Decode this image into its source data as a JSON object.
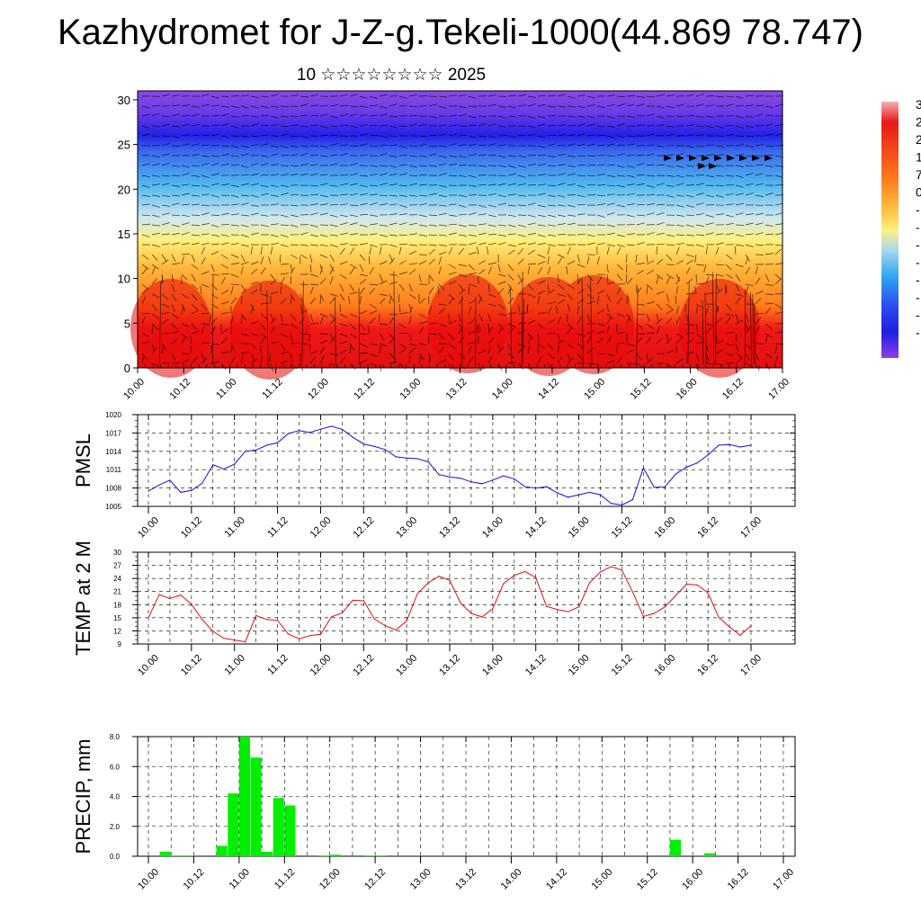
{
  "page": {
    "title": "Kazhydromet for J-Z-g.Tekeli-1000(44.869 78.747)",
    "subtitle": "10 ☆☆☆☆☆☆☆☆ 2025"
  },
  "chart_data": [
    {
      "type": "heatmap",
      "name": "vertical cross-section (temperature shading with wind barbs)",
      "x_tick_labels": [
        "10.00",
        "10.12",
        "11.00",
        "11.12",
        "12.00",
        "12.12",
        "13.00",
        "13.12",
        "14.00",
        "14.12",
        "15.00",
        "15.12",
        "16.00",
        "16.12",
        "17.00"
      ],
      "y_tick_labels": [
        "0",
        "5",
        "10",
        "15",
        "20",
        "25",
        "30"
      ],
      "ylim": [
        0,
        31
      ],
      "colorbar_labels": [
        "3",
        "2",
        "2",
        "1",
        "7",
        "0",
        "-",
        "-",
        "-",
        "-",
        "-",
        "-",
        "-",
        "-"
      ],
      "colors": {
        "level_0": "#e21010",
        "level_5": "#ff7a1a",
        "level_10": "#ffb63a",
        "level_15": "#fff07a",
        "level_20": "#50b8f0",
        "level_25": "#2222e8",
        "level_30": "#8a4ae0",
        "barbs": "#000000"
      },
      "grid": true
    },
    {
      "type": "line",
      "ylabel": "PMSL",
      "ylim": [
        1005,
        1020
      ],
      "y_tick_labels": [
        "1005",
        "1008",
        "1011",
        "1014",
        "1017",
        "1020"
      ],
      "x_tick_labels": [
        "10.00",
        "10.12",
        "11.00",
        "11.12",
        "12.00",
        "12.12",
        "13.00",
        "13.12",
        "14.00",
        "14.12",
        "15.00",
        "15.12",
        "16.00",
        "16.12",
        "17.00"
      ],
      "color": "#1010e0",
      "grid": true,
      "values": [
        1007.5,
        1008.5,
        1009.3,
        1007.3,
        1007.6,
        1008.8,
        1011.8,
        1011.1,
        1011.9,
        1014.0,
        1014.2,
        1015.0,
        1015.4,
        1016.9,
        1017.4,
        1017.1,
        1017.6,
        1018.1,
        1017.6,
        1016.3,
        1015.2,
        1014.8,
        1014.3,
        1013.1,
        1012.9,
        1012.8,
        1012.3,
        1010.2,
        1009.8,
        1009.6,
        1009.0,
        1008.7,
        1009.3,
        1010.0,
        1009.5,
        1008.2,
        1008.0,
        1008.2,
        1007.2,
        1006.5,
        1006.9,
        1007.3,
        1006.9,
        1005.5,
        1005.2,
        1006.1,
        1011.3,
        1008.1,
        1008.2,
        1010.3,
        1011.4,
        1012.1,
        1013.4,
        1015.0,
        1015.1,
        1014.7,
        1015.0
      ]
    },
    {
      "type": "line",
      "ylabel": "TEMP at 2 M",
      "ylim": [
        9,
        30
      ],
      "y_tick_labels": [
        "9",
        "12",
        "15",
        "18",
        "21",
        "24",
        "27",
        "30"
      ],
      "x_tick_labels": [
        "10.00",
        "10.12",
        "11.00",
        "11.12",
        "12.00",
        "12.12",
        "13.00",
        "13.12",
        "14.00",
        "14.12",
        "15.00",
        "15.12",
        "16.00",
        "16.12",
        "17.00"
      ],
      "color": "#e01010",
      "grid": true,
      "values": [
        15.0,
        20.3,
        19.4,
        20.2,
        18.1,
        14.6,
        11.9,
        10.3,
        9.9,
        9.5,
        15.5,
        14.6,
        14.4,
        11.3,
        10.2,
        10.9,
        11.2,
        15.2,
        16.1,
        19.0,
        18.9,
        14.7,
        13.2,
        12.2,
        14.3,
        20.5,
        23.0,
        24.5,
        23.6,
        18.4,
        16.0,
        15.2,
        17.1,
        22.8,
        24.7,
        25.6,
        24.2,
        17.6,
        16.9,
        16.4,
        17.5,
        23.0,
        25.5,
        26.7,
        25.9,
        20.9,
        15.3,
        16.0,
        17.5,
        20.1,
        22.7,
        22.5,
        20.7,
        15.1,
        12.9,
        11.0,
        13.2
      ]
    },
    {
      "type": "bar",
      "ylabel": "PRECIP, mm",
      "ylim": [
        0,
        8
      ],
      "y_tick_labels": [
        "0.0",
        "2.0",
        "4.0",
        "6.0",
        "8.0"
      ],
      "x_tick_labels": [
        "10.00",
        "10.12",
        "11.00",
        "11.12",
        "12.00",
        "12.12",
        "13.00",
        "13.12",
        "14.00",
        "14.12",
        "15.00",
        "15.12",
        "16.00",
        "16.12",
        "17.00"
      ],
      "color": "#00ee00",
      "grid": true,
      "values": [
        0,
        0.3,
        0.05,
        0.05,
        0,
        0,
        0.7,
        4.2,
        8.0,
        6.6,
        0.3,
        3.9,
        3.4,
        0,
        0,
        0.05,
        0.1,
        0,
        0,
        0.05,
        0.05,
        0,
        0,
        0,
        0,
        0,
        0,
        0,
        0,
        0,
        0,
        0,
        0,
        0,
        0,
        0,
        0,
        0,
        0,
        0,
        0,
        0,
        0,
        0,
        0,
        0,
        1.1,
        0,
        0,
        0.2,
        0,
        0,
        0,
        0,
        0,
        0
      ]
    }
  ]
}
